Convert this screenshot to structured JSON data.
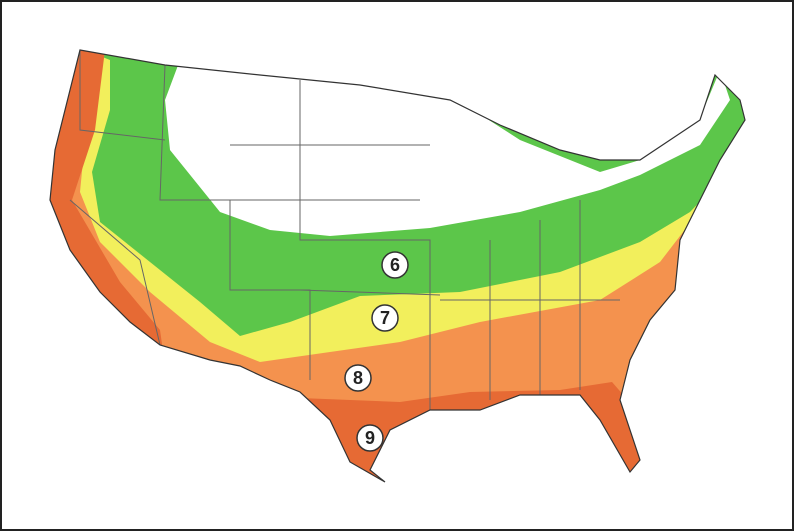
{
  "zones": [
    {
      "label": "6"
    },
    {
      "label": "7"
    },
    {
      "label": "8"
    },
    {
      "label": "9"
    }
  ]
}
